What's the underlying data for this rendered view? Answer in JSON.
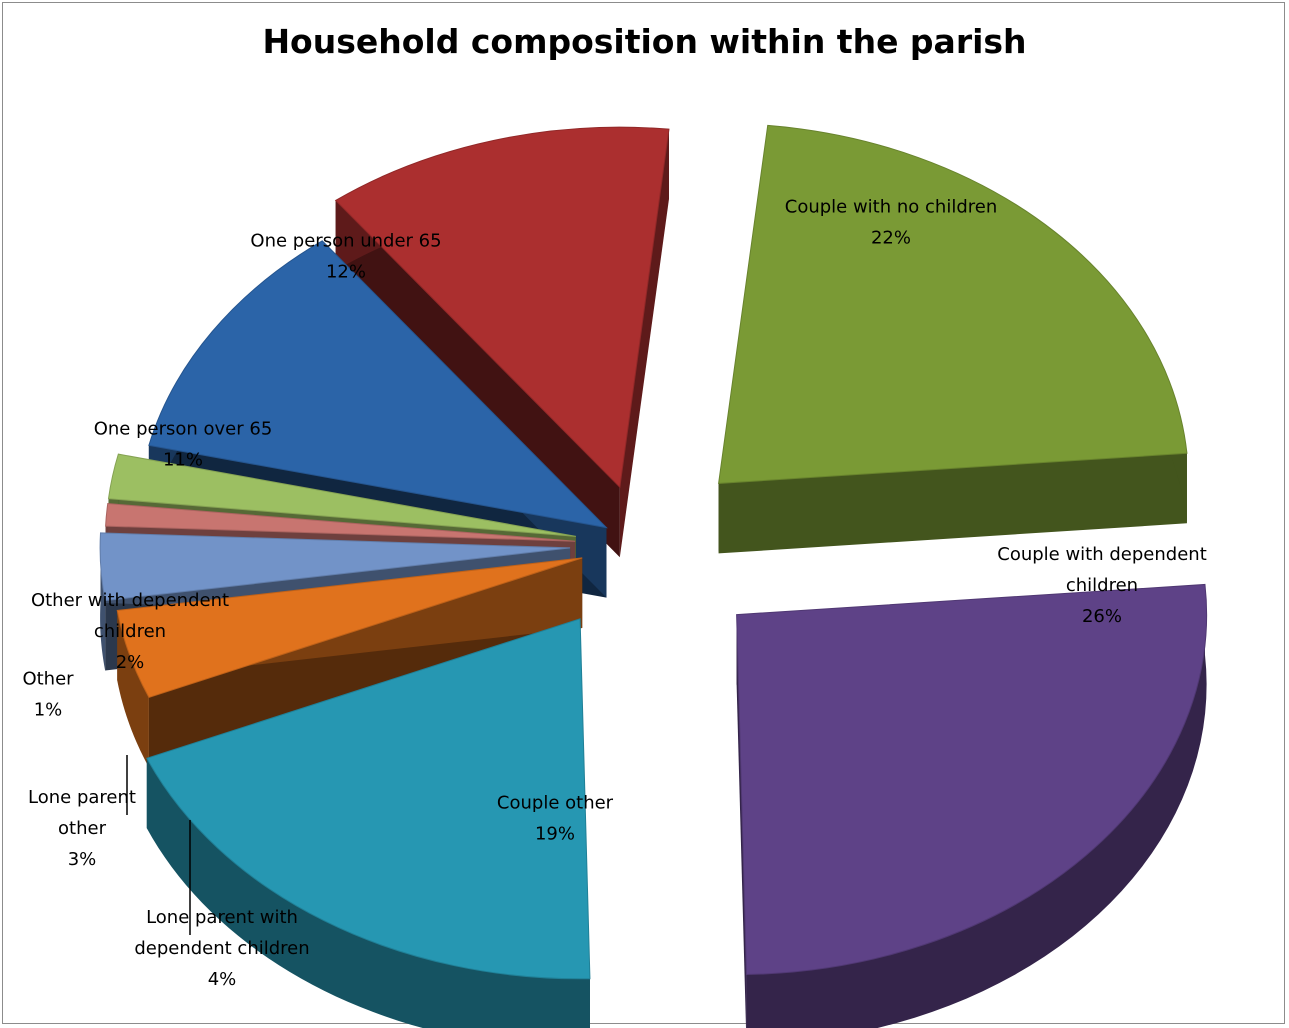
{
  "chart_data": {
    "type": "pie",
    "title": "Household composition within the parish",
    "grid": false,
    "legend": "none",
    "slices": [
      {
        "label_lines": [
          "Couple with no children",
          "22%"
        ],
        "value": 22,
        "color": "#7a9a35"
      },
      {
        "label_lines": [
          "Couple with dependent",
          "children",
          "26%"
        ],
        "value": 26,
        "color": "#5e4287"
      },
      {
        "label_lines": [
          "Couple other",
          "19%"
        ],
        "value": 19,
        "color": "#2697b2"
      },
      {
        "label_lines": [
          "Lone parent with",
          "dependent children",
          "4%"
        ],
        "value": 4,
        "color": "#e0721d"
      },
      {
        "label_lines": [
          "Lone parent",
          "other",
          "3%"
        ],
        "value": 3,
        "color": "#7293c8"
      },
      {
        "label_lines": [
          "Other",
          "1%"
        ],
        "value": 1,
        "color": "#c87570"
      },
      {
        "label_lines": [
          "Other with dependent",
          "children",
          "2%"
        ],
        "value": 2,
        "color": "#9cbf62"
      },
      {
        "label_lines": [
          "One person over 65",
          "11%"
        ],
        "value": 11,
        "color": "#2b64a8"
      },
      {
        "label_lines": [
          "One person under 65",
          "12%"
        ],
        "value": 12,
        "color": "#ab2f2f"
      }
    ]
  }
}
